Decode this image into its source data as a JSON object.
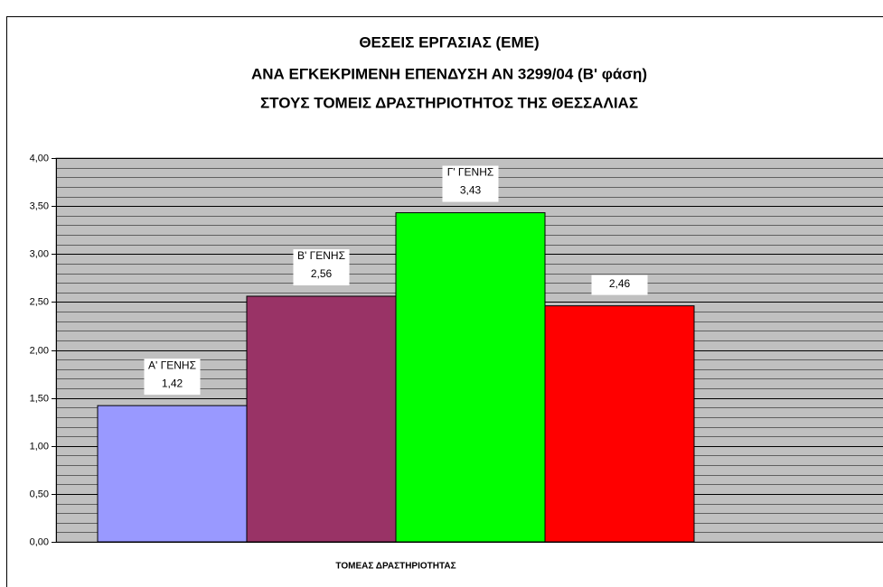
{
  "chart_data": {
    "type": "bar",
    "title": [
      "ΘΕΣΕΙΣ ΕΡΓΑΣΙΑΣ (ΕΜΕ)",
      "ΑΝΑ ΕΓΚΕΚΡΙΜΕΝΗ  ΕΠΕΝΔΥΣΗ ΑΝ 3299/04 (Β' φάση)",
      "ΣΤΟΥΣ ΤΟΜΕΙΣ ΔΡΑΣΤΗΡΙΟΤΗΤΟΣ ΤΗΣ ΘΕΣΣΑΛΙΑΣ"
    ],
    "categories": [
      "ΤΟΜΕΑΣ ΔΡΑΣΤΗΡΙΟΤΗΤΑΣ"
    ],
    "series": [
      {
        "name": "Α' ΓΕΝΗΣ",
        "color": "#9999ff",
        "values": [
          1.42
        ],
        "value_labels": [
          "1,42"
        ]
      },
      {
        "name": "Β' ΓΕΝΗΣ",
        "color": "#993366",
        "values": [
          2.56
        ],
        "value_labels": [
          "2,56"
        ]
      },
      {
        "name": "Γ' ΓΕΝΗΣ",
        "color": "#00ff00",
        "values": [
          3.43
        ],
        "value_labels": [
          "3,43"
        ]
      },
      {
        "name": null,
        "color": "#ff0000",
        "values": [
          2.46
        ],
        "value_labels": [
          "2,46"
        ]
      }
    ],
    "ylim": [
      0,
      4
    ],
    "yticks": [
      {
        "value": 0,
        "label": "0,00"
      },
      {
        "value": 0.5,
        "label": "0,50"
      },
      {
        "value": 1,
        "label": "1,00"
      },
      {
        "value": 1.5,
        "label": "1,50"
      },
      {
        "value": 2,
        "label": "2,00"
      },
      {
        "value": 2.5,
        "label": "2,50"
      },
      {
        "value": 3,
        "label": "3,00"
      },
      {
        "value": 3.5,
        "label": "3,50"
      },
      {
        "value": 4,
        "label": "4,00"
      }
    ],
    "minor_yticks": [
      0.1,
      0.2,
      0.3,
      0.4,
      0.6,
      0.7,
      0.8,
      0.9,
      1.1,
      1.2,
      1.3,
      1.4,
      1.6,
      1.7,
      1.8,
      1.9,
      2.1,
      2.2,
      2.3,
      2.4,
      2.6,
      2.7,
      2.8,
      2.9,
      3.1,
      3.2,
      3.3,
      3.4,
      3.6,
      3.7,
      3.8,
      3.9
    ],
    "grid": true
  }
}
